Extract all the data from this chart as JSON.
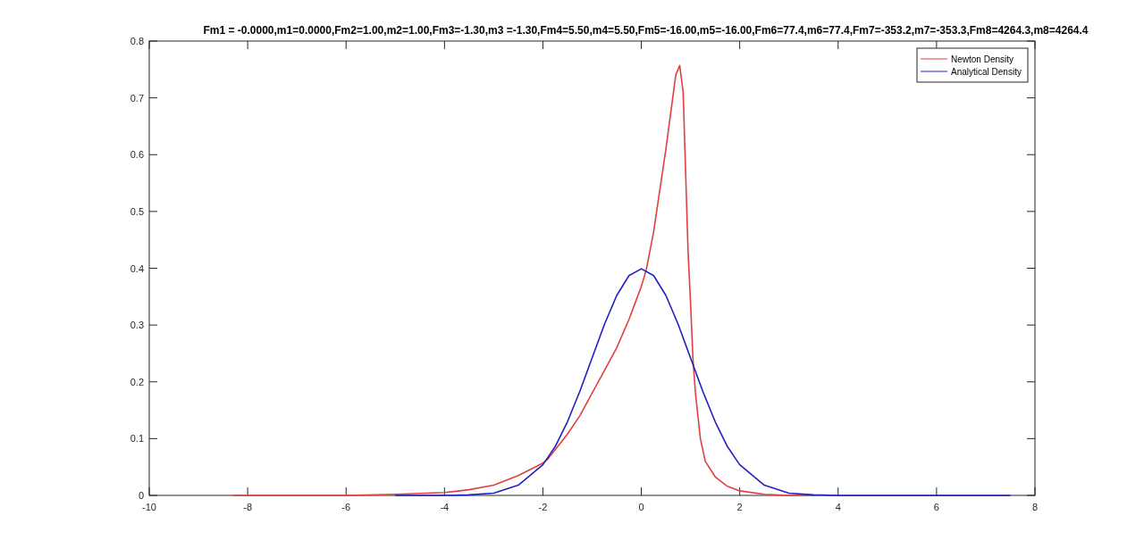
{
  "chart_data": {
    "type": "line",
    "title": "Fm1 = -0.0000,m1=0.0000,Fm2=1.00,m2=1.00,Fm3=-1.30,m3 =-1.30,Fm4=5.50,m4=5.50,Fm5=-16.00,m5=-16.00,Fm6=77.4,m6=77.4,Fm7=-353.2,m7=-353.3,Fm8=4264.3,m8=4264.4",
    "xlim": [
      -10,
      8
    ],
    "xticks": [
      -10,
      -8,
      -6,
      -4,
      -2,
      0,
      2,
      4,
      6,
      8
    ],
    "ylim": [
      0,
      0.8
    ],
    "yticks": [
      0,
      0.1,
      0.2,
      0.3,
      0.4,
      0.5,
      0.6,
      0.7,
      0.8
    ],
    "grid": false,
    "legend": "top right",
    "marker": "none",
    "line_style": "solid",
    "series": [
      {
        "name": "Newton Density",
        "color": "#e04040",
        "x": [
          -8.3,
          -7,
          -6,
          -5,
          -4,
          -3.5,
          -3,
          -2.5,
          -2,
          -1.9,
          -1.5,
          -1.25,
          -1,
          -0.75,
          -0.5,
          -0.25,
          0,
          0.1,
          0.25,
          0.5,
          0.7,
          0.78,
          0.85,
          0.9,
          0.95,
          1,
          1.05,
          1.1,
          1.2,
          1.3,
          1.5,
          1.75,
          2,
          2.5,
          3,
          3.5
        ],
        "values": [
          0,
          0,
          0,
          0.002,
          0.005,
          0.01,
          0.018,
          0.035,
          0.057,
          0.064,
          0.108,
          0.14,
          0.18,
          0.22,
          0.26,
          0.31,
          0.368,
          0.397,
          0.464,
          0.61,
          0.74,
          0.757,
          0.71,
          0.57,
          0.43,
          0.34,
          0.24,
          0.18,
          0.1,
          0.06,
          0.033,
          0.016,
          0.008,
          0.002,
          0,
          0
        ]
      },
      {
        "name": "Analytical Density",
        "color": "#2020c0",
        "x": [
          -5,
          -4,
          -3.5,
          -3,
          -2.5,
          -2,
          -1.75,
          -1.5,
          -1.25,
          -1,
          -0.75,
          -0.5,
          -0.25,
          0,
          0.25,
          0.5,
          0.75,
          1,
          1.25,
          1.5,
          1.75,
          2,
          2.5,
          3,
          3.5,
          4,
          5,
          7.5
        ],
        "values": [
          0,
          0,
          0.001,
          0.004,
          0.018,
          0.054,
          0.086,
          0.13,
          0.183,
          0.242,
          0.301,
          0.352,
          0.387,
          0.399,
          0.387,
          0.352,
          0.301,
          0.242,
          0.183,
          0.13,
          0.086,
          0.054,
          0.018,
          0.004,
          0.001,
          0,
          0,
          0
        ]
      }
    ]
  }
}
